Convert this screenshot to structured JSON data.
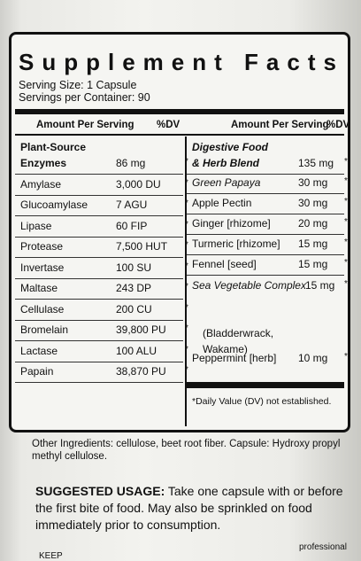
{
  "title": "Supplement Facts",
  "serving_size": "Serving Size: 1 Capsule",
  "servings_per_container": "Servings per Container: 90",
  "left_header": "Amount Per Serving",
  "left_dv": "%DV",
  "right_header": "Amount Per Serving",
  "right_dv": "%DV",
  "left_group": "Plant-Source",
  "left_items": [
    {
      "name": "Enzymes",
      "amount": "86 mg",
      "dv": "*"
    },
    {
      "name": "Amylase",
      "amount": "3,000 DU",
      "dv": "*"
    },
    {
      "name": "Glucoamylase",
      "amount": "7 AGU",
      "dv": "*"
    },
    {
      "name": "Lipase",
      "amount": "60 FIP",
      "dv": "*"
    },
    {
      "name": "Protease",
      "amount": "7,500 HUT",
      "dv": "*"
    },
    {
      "name": "Invertase",
      "amount": "100 SU",
      "dv": "*"
    },
    {
      "name": "Maltase",
      "amount": "243 DP",
      "dv": "*"
    },
    {
      "name": "Cellulase",
      "amount": "200 CU",
      "dv": "*"
    },
    {
      "name": "Bromelain",
      "amount": "39,800 PU",
      "dv": "*"
    },
    {
      "name": "Lactase",
      "amount": "100 ALU",
      "dv": "*"
    },
    {
      "name": "Papain",
      "amount": "38,870 PU",
      "dv": "*"
    }
  ],
  "right_group_line1": "Digestive Food",
  "right_items": [
    {
      "name": "& Herb Blend",
      "amount": "135 mg",
      "dv": "*"
    },
    {
      "name": "Green Papaya",
      "amount": "30 mg",
      "dv": "*"
    },
    {
      "name": "Apple Pectin",
      "amount": "30 mg",
      "dv": "*"
    },
    {
      "name": "Ginger [rhizome]",
      "amount": "20 mg",
      "dv": "*"
    },
    {
      "name": "Turmeric [rhizome]",
      "amount": "15 mg",
      "dv": "*"
    },
    {
      "name": "Fennel [seed]",
      "amount": "15 mg",
      "dv": "*"
    },
    {
      "name": "Sea Vegetable Complex",
      "amount": "15 mg",
      "dv": "*"
    },
    {
      "name": "Peppermint [herb]",
      "amount": "10 mg",
      "dv": "*"
    }
  ],
  "sea_veg_detail_1": "(Bladderwrack,",
  "sea_veg_detail_2": "Wakame)",
  "dv_note": "*Daily Value (DV) not established.",
  "other_ingredients": "Other Ingredients: cellulose, beet root fiber. Capsule: Hydroxy propyl methyl cellulose.",
  "suggested_label": "SUGGESTED USAGE:",
  "suggested_text": "Take one capsule with or before the first bite of food. May also be sprinkled on food immediately prior to consumption.",
  "cut_text_left": "KEEP",
  "cut_text_right": "professional"
}
